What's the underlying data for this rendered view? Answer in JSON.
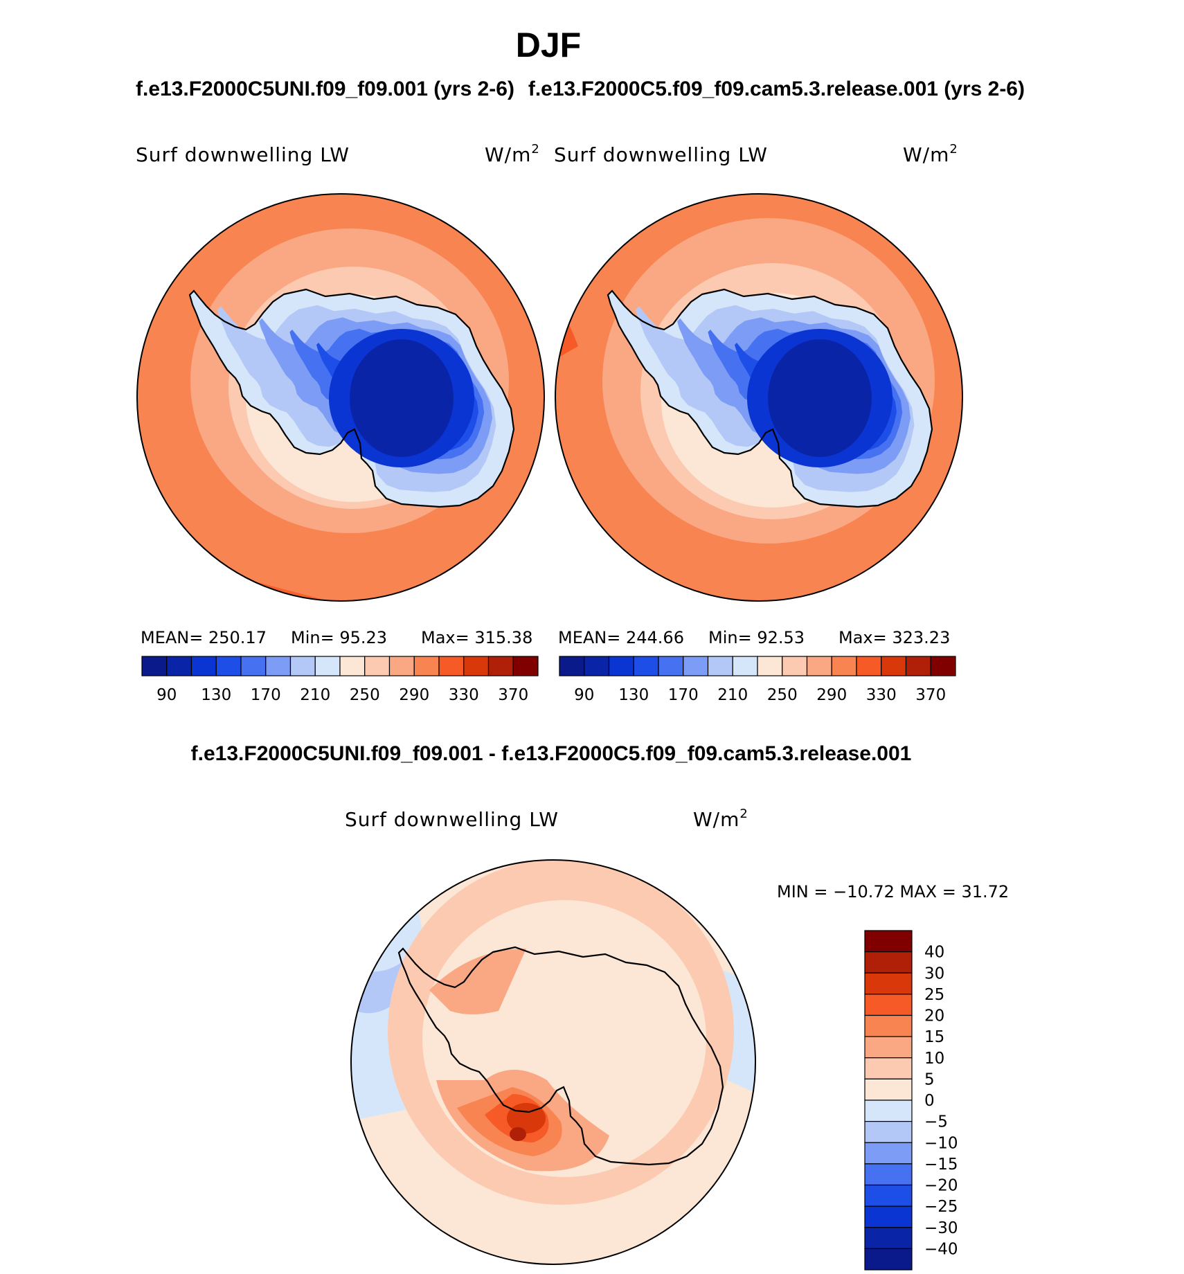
{
  "figure": {
    "season": "DJF",
    "diff_title": "f.e13.F2000C5UNI.f09_f09.001 - f.e13.F2000C5.f09_f09.cam5.3.release.001"
  },
  "panels": [
    {
      "case_title": "f.e13.F2000C5UNI.f09_f09.001 (yrs 2-6)",
      "variable": "Surf downwelling LW",
      "units": "W/m",
      "units_exp": "2",
      "stats": {
        "mean": "MEAN= 250.17",
        "min": "Min=  95.23",
        "max": "Max= 315.38"
      }
    },
    {
      "case_title": "f.e13.F2000C5.f09_f09.cam5.3.release.001 (yrs 2-6)",
      "variable": "Surf downwelling LW",
      "units": "W/m",
      "units_exp": "2",
      "stats": {
        "mean": "MEAN= 244.66",
        "min": "Min=  92.53",
        "max": "Max= 323.23"
      }
    },
    {
      "variable": "Surf downwelling LW",
      "units": "W/m",
      "units_exp": "2",
      "stats": {
        "minmax": "MIN = −10.72 MAX =  31.72"
      }
    }
  ],
  "colorbar_abs": {
    "colors": [
      "#0a1a8a",
      "#0a24a8",
      "#0a35d2",
      "#1e4ee8",
      "#4672f2",
      "#7c9cf5",
      "#b4c8f8",
      "#d6e6fa",
      "#fce6d6",
      "#fccab0",
      "#faa884",
      "#f88452",
      "#f65a26",
      "#d8380a",
      "#b02008",
      "#800000"
    ],
    "tick_labels": [
      "90",
      "130",
      "170",
      "210",
      "250",
      "290",
      "330",
      "370"
    ]
  },
  "colorbar_diff": {
    "colors": [
      "#0a1a8a",
      "#0a24a8",
      "#0a35d2",
      "#1e4ee8",
      "#4672f2",
      "#7c9cf5",
      "#b4c8f8",
      "#d6e6fa",
      "#fce6d6",
      "#fccab0",
      "#faa884",
      "#f88452",
      "#f65a26",
      "#d8380a",
      "#b02008",
      "#800000"
    ],
    "tick_labels": [
      "40",
      "30",
      "25",
      "20",
      "15",
      "10",
      "5",
      "0",
      "−5",
      "−10",
      "−15",
      "−20",
      "−25",
      "−30",
      "−40"
    ]
  }
}
